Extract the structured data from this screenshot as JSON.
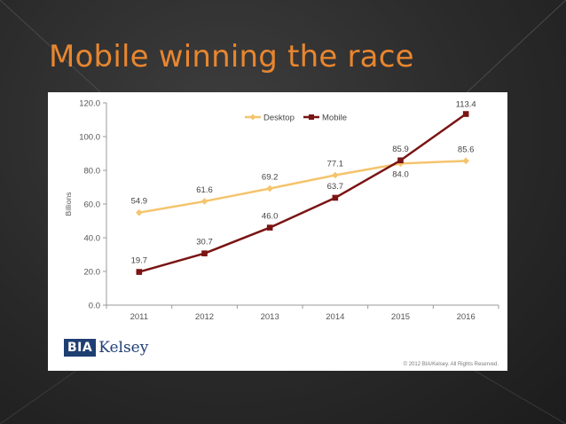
{
  "slide": {
    "title": "Mobile winning the race"
  },
  "logo": {
    "box_text": "BIA",
    "word_text": "Kelsey"
  },
  "copyright": "© 2012 BIA/Kelsey. All Rights Reserved.",
  "colors": {
    "desktop": "#f5c46e",
    "mobile": "#7b1414",
    "title": "#e8862f"
  },
  "chart_data": {
    "type": "line",
    "title": "",
    "xlabel": "",
    "ylabel": "Billions",
    "x": [
      "2011",
      "2012",
      "2013",
      "2014",
      "2015",
      "2016"
    ],
    "ylim": [
      0,
      120
    ],
    "yticks": [
      "0.0",
      "20.0",
      "40.0",
      "60.0",
      "80.0",
      "100.0",
      "120.0"
    ],
    "grid": false,
    "legend": "top-center",
    "series": [
      {
        "name": "Desktop",
        "values": [
          54.9,
          61.6,
          69.2,
          77.1,
          84.0,
          85.6
        ],
        "labels": [
          "54.9",
          "61.6",
          "69.2",
          "77.1",
          "84.0",
          "85.6"
        ]
      },
      {
        "name": "Mobile",
        "values": [
          19.7,
          30.7,
          46.0,
          63.7,
          85.9,
          113.4
        ],
        "labels": [
          "19.7",
          "30.7",
          "46.0",
          "63.7",
          "85.9",
          "113.4"
        ]
      }
    ]
  }
}
